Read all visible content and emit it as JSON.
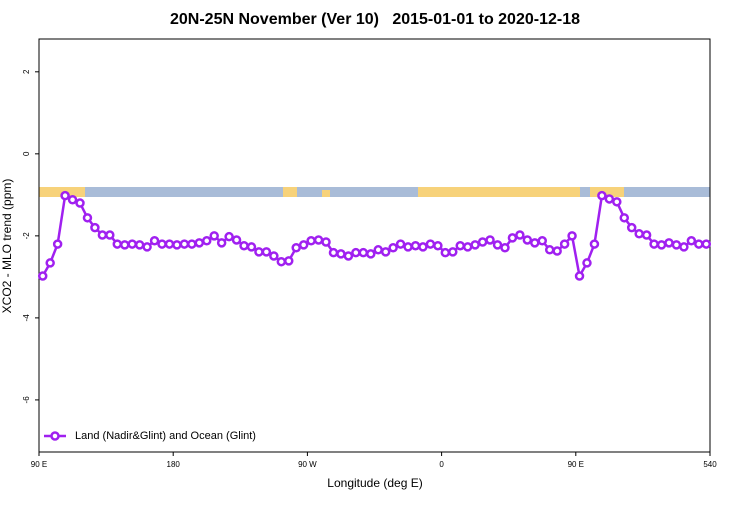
{
  "chart_data": {
    "type": "line",
    "title": "20N-25N November (Ver 10)   2015-01-01 to 2020-12-18",
    "x_label": "Longitude (deg E)",
    "y_label": "XCO2 - MLO trend (ppm)",
    "x": [
      92.5,
      97.5,
      102.5,
      107.5,
      112.5,
      117.5,
      122.5,
      127.5,
      132.5,
      137.5,
      142.5,
      147.5,
      152.5,
      157.5,
      162.5,
      167.5,
      172.5,
      177.5,
      182.5,
      187.5,
      192.5,
      197.5,
      202.5,
      207.5,
      212.5,
      217.5,
      222.5,
      227.5,
      232.5,
      237.5,
      242.5,
      247.5,
      252.5,
      257.5,
      262.5,
      267.5,
      272.5,
      277.5,
      282.5,
      287.5,
      292.5,
      297.5,
      302.5,
      307.5,
      312.5,
      317.5,
      322.5,
      327.5,
      332.5,
      337.5,
      342.5,
      347.5,
      352.5,
      357.5,
      362.5,
      367.5,
      372.5,
      377.5,
      382.5,
      387.5,
      392.5,
      397.5,
      402.5,
      407.5,
      412.5,
      417.5,
      422.5,
      427.5,
      432.5,
      437.5,
      442.5,
      447.5,
      452.5,
      457.5,
      462.5,
      467.5,
      472.5,
      477.5,
      482.5,
      487.5,
      492.5,
      497.5,
      502.5,
      507.5,
      512.5,
      517.5,
      522.5,
      527.5,
      532.5,
      537.5
    ],
    "series": [
      {
        "name": "Land (Nadir&Glint) and Ocean (Glint)",
        "color": "#a020f0",
        "values": [
          -2.98,
          -2.66,
          -2.2,
          -1.02,
          -1.12,
          -1.2,
          -1.56,
          -1.8,
          -1.98,
          -1.98,
          -2.2,
          -2.22,
          -2.2,
          -2.22,
          -2.27,
          -2.12,
          -2.2,
          -2.2,
          -2.22,
          -2.2,
          -2.2,
          -2.17,
          -2.12,
          -2.0,
          -2.17,
          -2.02,
          -2.1,
          -2.24,
          -2.27,
          -2.39,
          -2.39,
          -2.49,
          -2.63,
          -2.61,
          -2.29,
          -2.22,
          -2.12,
          -2.1,
          -2.15,
          -2.41,
          -2.44,
          -2.49,
          -2.41,
          -2.41,
          -2.44,
          -2.34,
          -2.39,
          -2.29,
          -2.2,
          -2.27,
          -2.24,
          -2.27,
          -2.2,
          -2.24,
          -2.41,
          -2.39,
          -2.24,
          -2.27,
          -2.22,
          -2.15,
          -2.1,
          -2.22,
          -2.29,
          -2.05,
          -1.98,
          -2.1,
          -2.17,
          -2.12,
          -2.34,
          -2.37,
          -2.2,
          -2.0,
          -2.98,
          -2.66,
          -2.2,
          -1.02,
          -1.1,
          -1.17,
          -1.56,
          -1.8,
          -1.95,
          -1.98,
          -2.2,
          -2.22,
          -2.17,
          -2.22,
          -2.27,
          -2.12,
          -2.2,
          -2.2
        ]
      }
    ],
    "xlim": [
      90,
      540
    ],
    "xticks": [
      {
        "value": 90,
        "label": "90 E"
      },
      180,
      {
        "value": 270,
        "label": "90 W"
      },
      {
        "value": 360,
        "label": "0"
      },
      {
        "value": 450,
        "label": "90 E"
      },
      540
    ],
    "ylim": [
      -7.27,
      2.8
    ],
    "yticks": [
      -6,
      -4,
      -2,
      0,
      2
    ],
    "legend": "bottom-left"
  }
}
